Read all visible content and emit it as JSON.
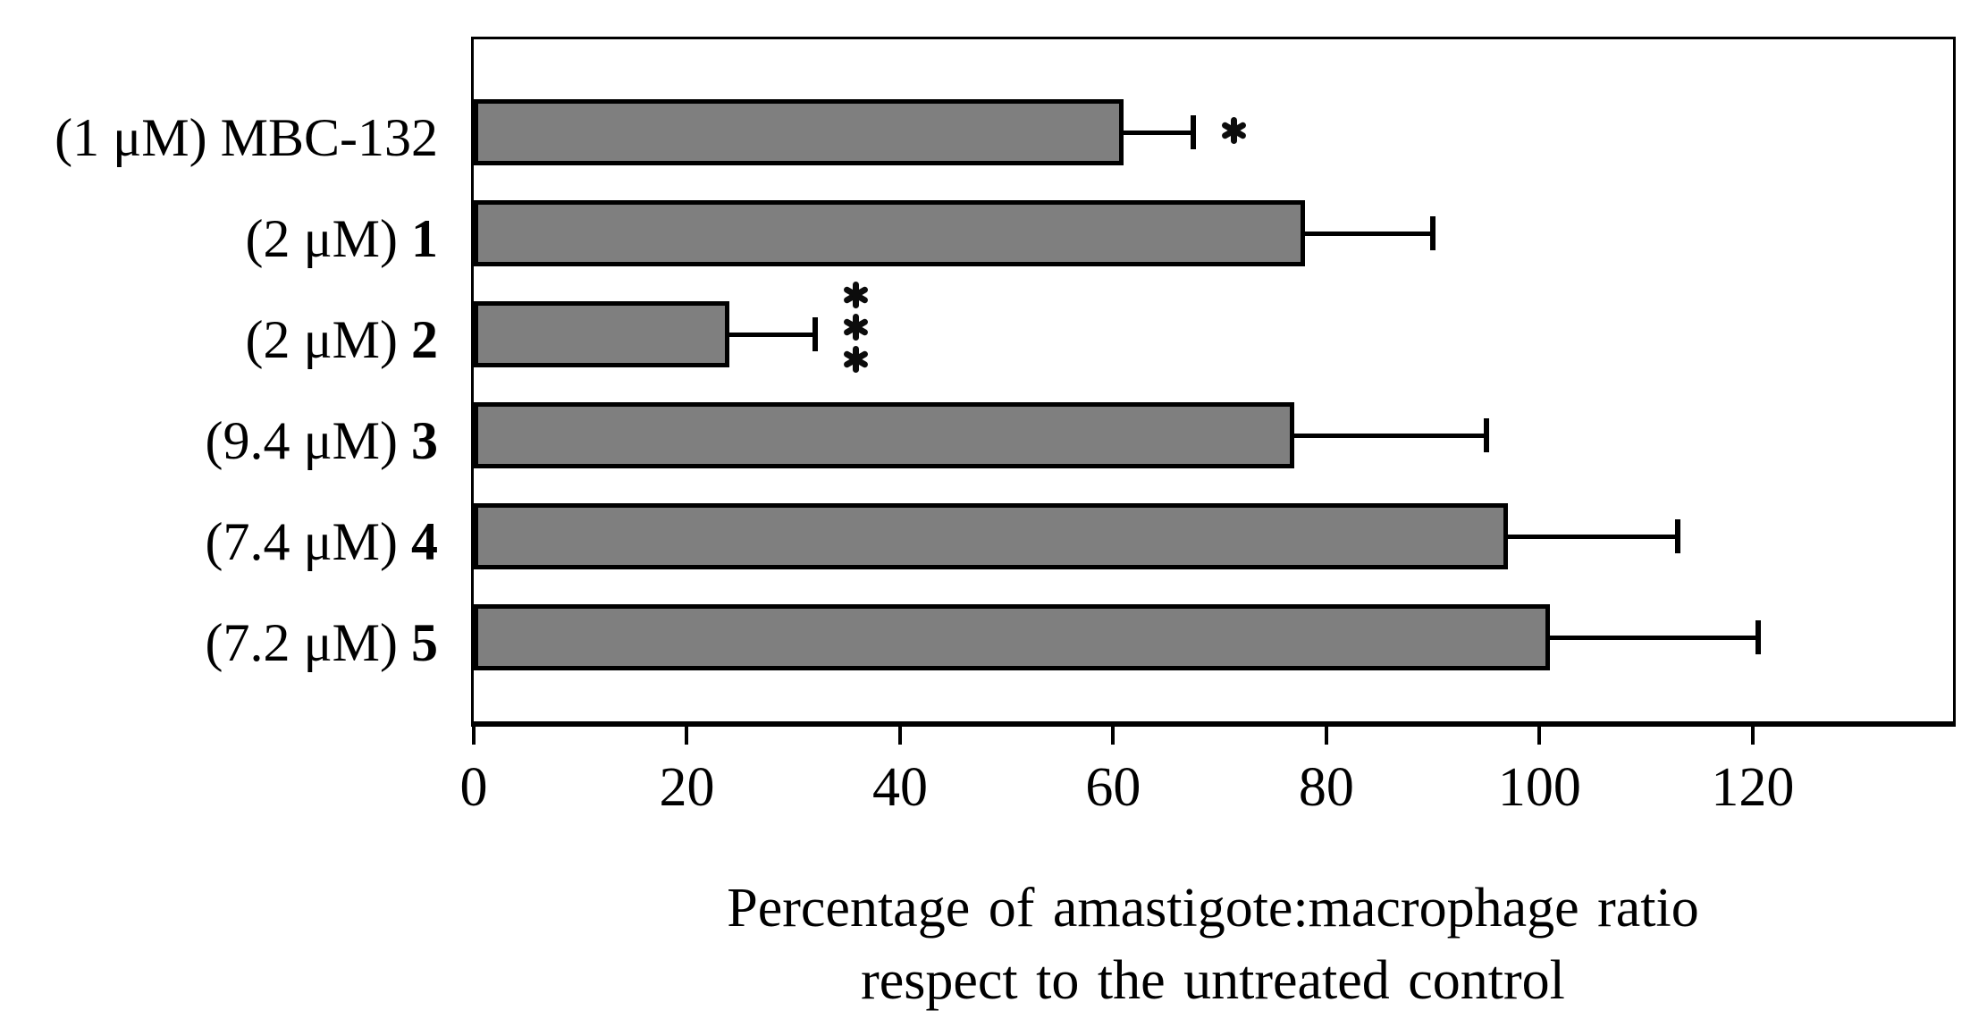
{
  "chart_data": {
    "type": "bar",
    "orientation": "horizontal",
    "title": "",
    "xlabel_lines": [
      "Percentage of amastigote:macrophage ratio",
      "respect to the untreated control"
    ],
    "x_ticks": [
      0,
      20,
      40,
      60,
      80,
      100,
      120
    ],
    "x_tick_labels": [
      "0",
      "20",
      "40",
      "60",
      "80",
      "100",
      "120"
    ],
    "xlim": [
      0,
      138.8
    ],
    "grid": "off",
    "legend": "none",
    "bar_color": "#7f7f7f",
    "bar_border_color": "#000000",
    "error_bar_color": "#000000",
    "categories": [
      "(1 μM) MBC-132",
      "(2 μM) 1",
      "(2 μM) 2",
      "(9.4 μM) 3",
      "(7.4 μM) 4",
      "(7.2 μM) 5"
    ],
    "rows": [
      {
        "prefix": "(1 μM) ",
        "compound": "MBC-132",
        "bold": false,
        "value": 61,
        "error": 6.5,
        "significance": "*"
      },
      {
        "prefix": "(2 μM) ",
        "compound": "1",
        "bold": true,
        "value": 78,
        "error": 12,
        "significance": ""
      },
      {
        "prefix": "(2 μM) ",
        "compound": "2",
        "bold": true,
        "value": 24,
        "error": 8,
        "significance": "***"
      },
      {
        "prefix": "(9.4 μM) ",
        "compound": "3",
        "bold": true,
        "value": 77,
        "error": 18,
        "significance": ""
      },
      {
        "prefix": "(7.4 μM) ",
        "compound": "4",
        "bold": true,
        "value": 97,
        "error": 16,
        "significance": ""
      },
      {
        "prefix": "(7.2 μM) ",
        "compound": "5",
        "bold": true,
        "value": 101,
        "error": 19.5,
        "significance": ""
      }
    ]
  }
}
